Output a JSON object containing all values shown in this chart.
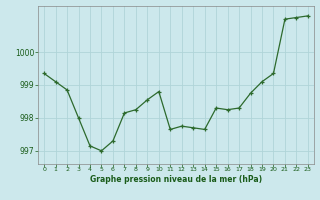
{
  "x": [
    0,
    1,
    2,
    3,
    4,
    5,
    6,
    7,
    8,
    9,
    10,
    11,
    12,
    13,
    14,
    15,
    16,
    17,
    18,
    19,
    20,
    21,
    22,
    23
  ],
  "y": [
    999.35,
    999.1,
    998.85,
    998.0,
    997.15,
    997.0,
    997.3,
    998.15,
    998.25,
    998.55,
    998.8,
    997.65,
    997.75,
    997.7,
    997.65,
    998.3,
    998.25,
    998.3,
    998.75,
    999.1,
    999.35,
    1001.0,
    1001.05,
    1001.1
  ],
  "ylim": [
    996.6,
    1001.4
  ],
  "yticks": [
    997,
    998,
    999,
    1000
  ],
  "xticks": [
    0,
    1,
    2,
    3,
    4,
    5,
    6,
    7,
    8,
    9,
    10,
    11,
    12,
    13,
    14,
    15,
    16,
    17,
    18,
    19,
    20,
    21,
    22,
    23
  ],
  "line_color": "#2d6a2d",
  "marker_color": "#2d6a2d",
  "bg_color": "#cce8ec",
  "grid_color": "#b0d4d8",
  "xlabel": "Graphe pression niveau de la mer (hPa)",
  "xlabel_color": "#1a5c1a",
  "tick_color": "#1a5c1a",
  "axis_color": "#888888"
}
